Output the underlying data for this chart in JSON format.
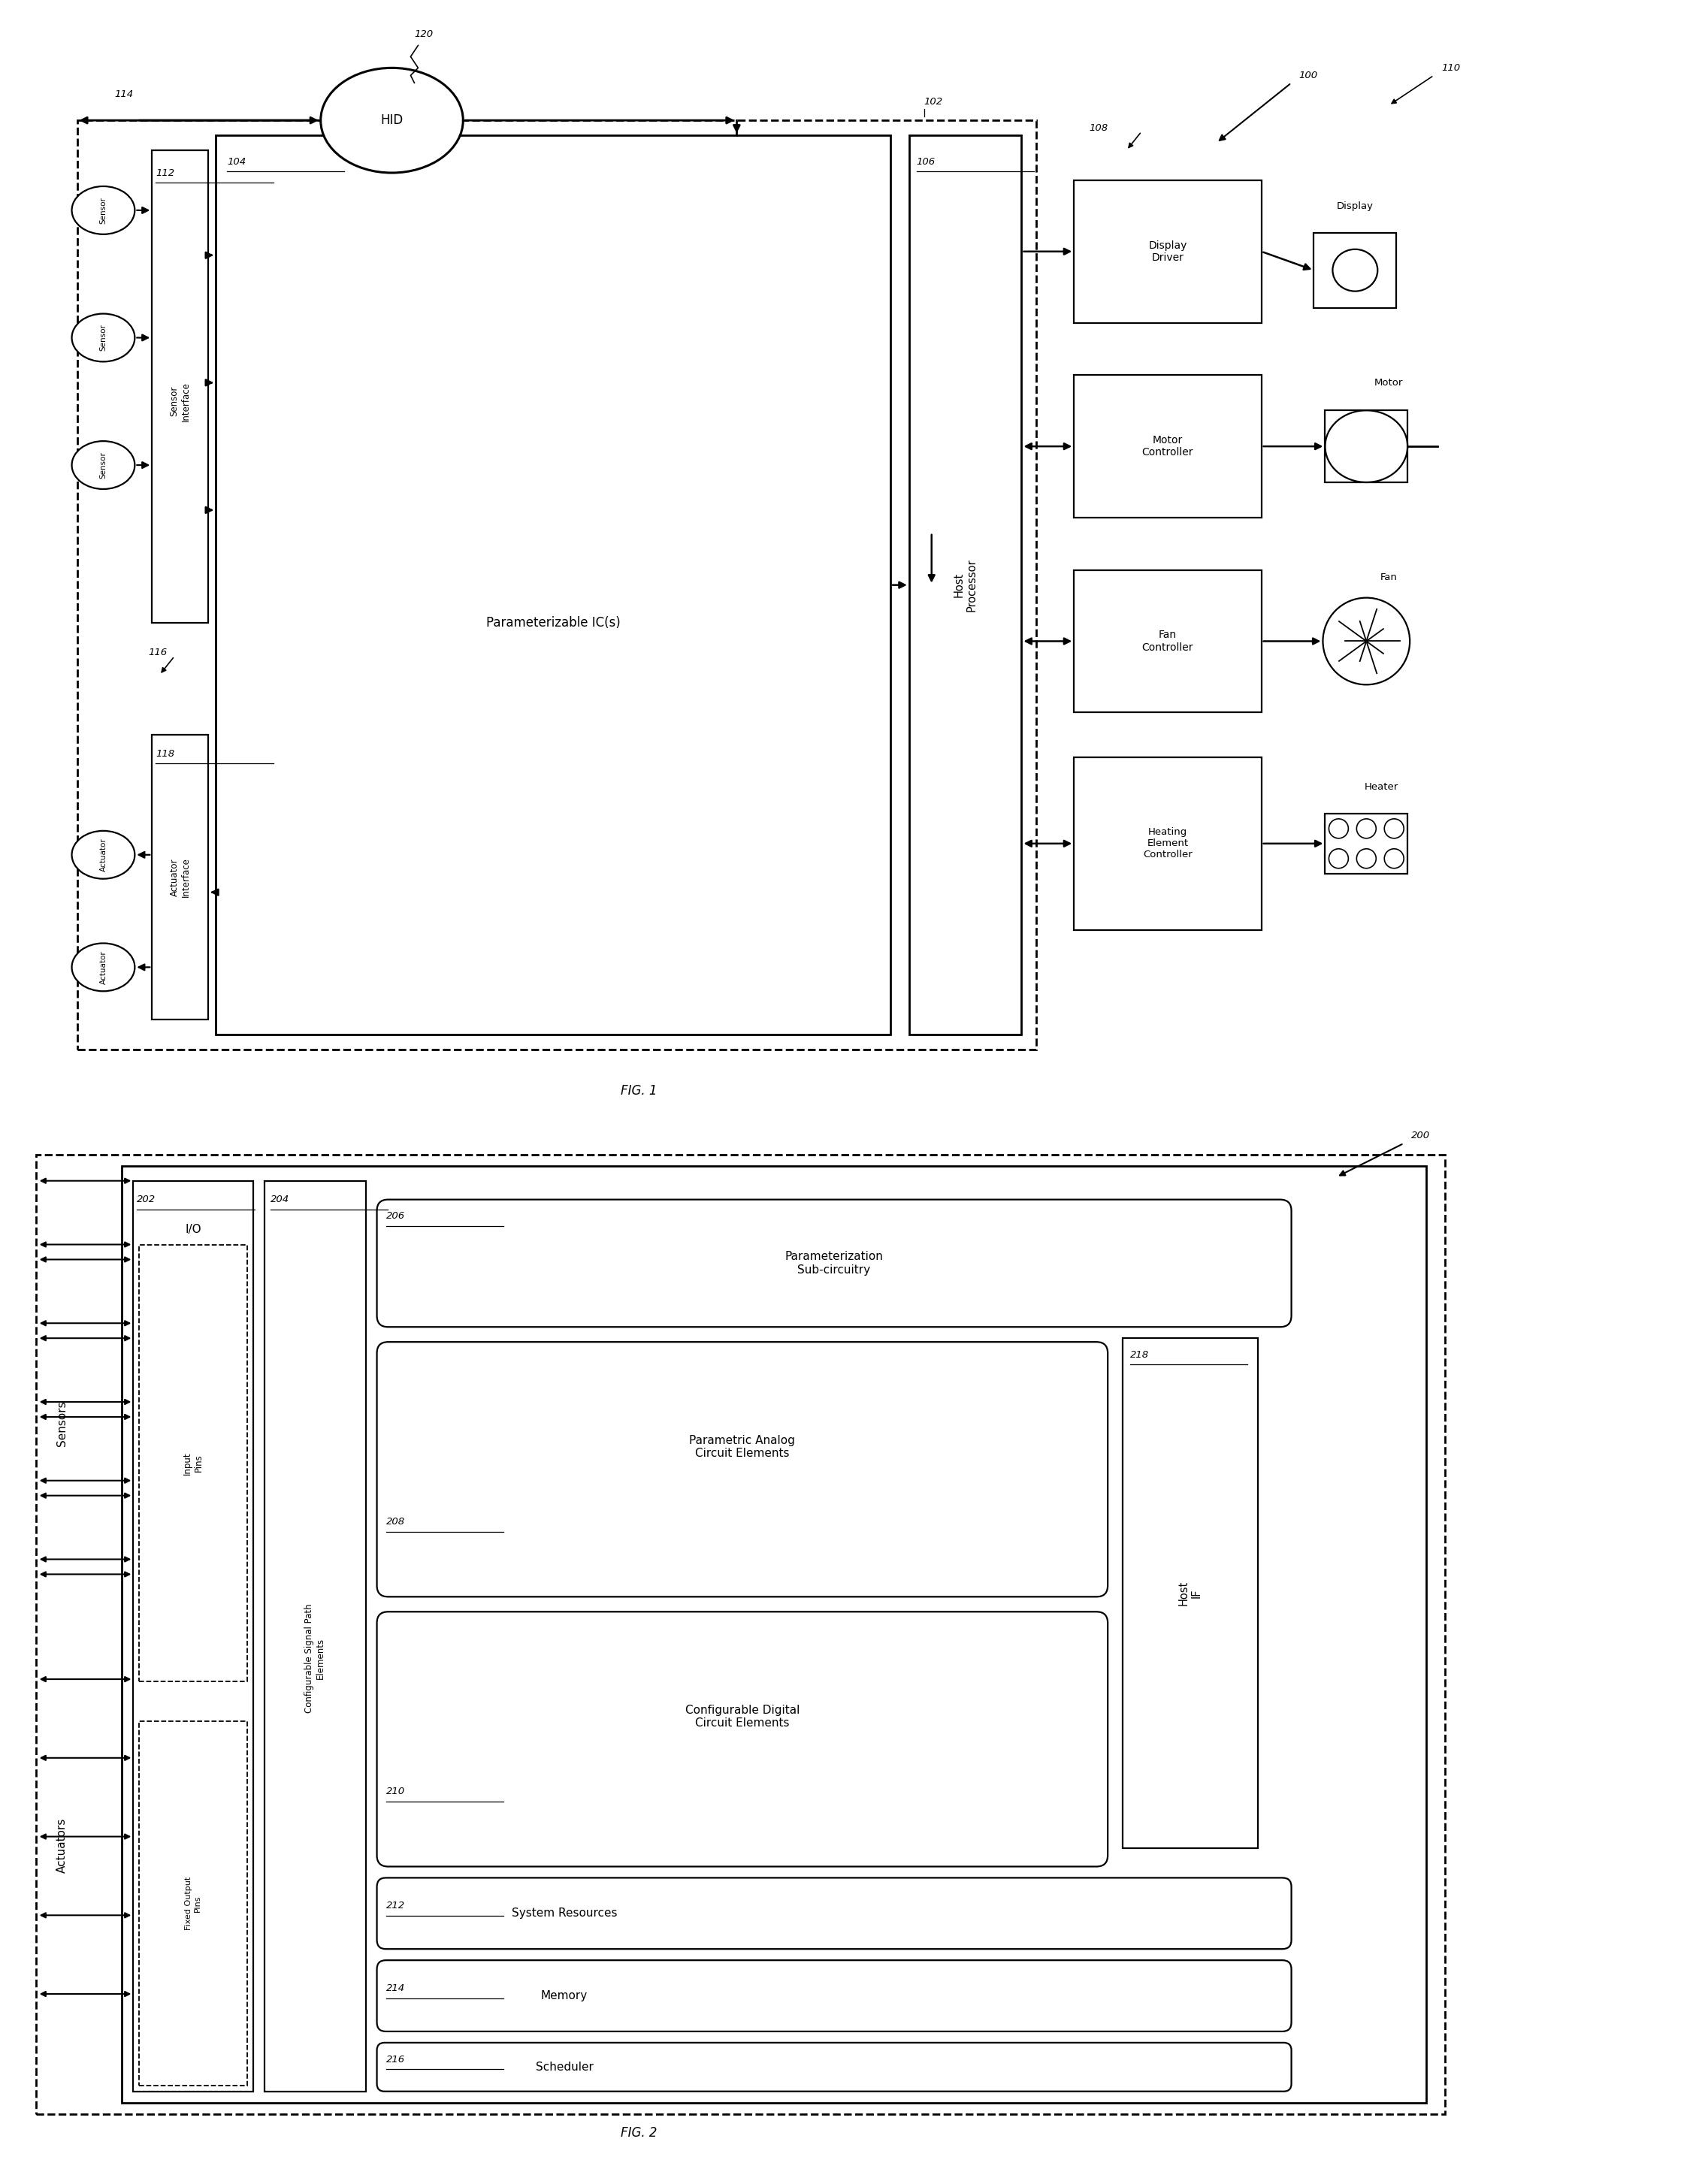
{
  "fig_width": 22.65,
  "fig_height": 29.07,
  "bg_color": "#ffffff",
  "fig1_title": "FIG. 1",
  "fig2_title": "FIG. 2",
  "ref100": "100",
  "ref102": "102",
  "ref104": "104",
  "ref106": "106",
  "ref108": "108",
  "ref110": "110",
  "ref112": "112",
  "ref114": "114",
  "ref116": "116",
  "ref118": "118",
  "ref120": "120",
  "ref200": "200",
  "ref202": "202",
  "ref204": "204",
  "ref206": "206",
  "ref208": "208",
  "ref210": "210",
  "ref212": "212",
  "ref214": "214",
  "ref216": "216",
  "ref218": "218",
  "label_paramIC": "Parameterizable IC(s)",
  "label_hostproc": "Host\nProcessor",
  "label_sensorIF": "Sensor\nInterface",
  "label_actuatorIF": "Actuator\nInterface",
  "label_displaydriver": "Display\nDriver",
  "label_motorcontroller": "Motor\nController",
  "label_fancontroller": "Fan\nController",
  "label_heatingcontroller": "Heating\nElement\nController",
  "label_sensor": "Sensor",
  "label_actuator": "Actuator",
  "label_display": "Display",
  "label_motor": "Motor",
  "label_fan": "Fan",
  "label_heater": "Heater",
  "label_hid": "HID",
  "label_IO": "I/O",
  "label_inputpins": "Input\nPins",
  "label_fixedoutpins": "Fixed Output\nPins",
  "label_configsig": "Configurable Signal Path\nElements",
  "label_paramsub": "Parameterization\nSub-circuitry",
  "label_paramanalog": "Parametric Analog\nCircuit Elements",
  "label_configdig": "Configurable Digital\nCircuit Elements",
  "label_sysres": "System Resources",
  "label_memory": "Memory",
  "label_scheduler": "Scheduler",
  "label_hostIF": "Host\nIF",
  "label_sensors": "Sensors",
  "label_actuators": "Actuators"
}
